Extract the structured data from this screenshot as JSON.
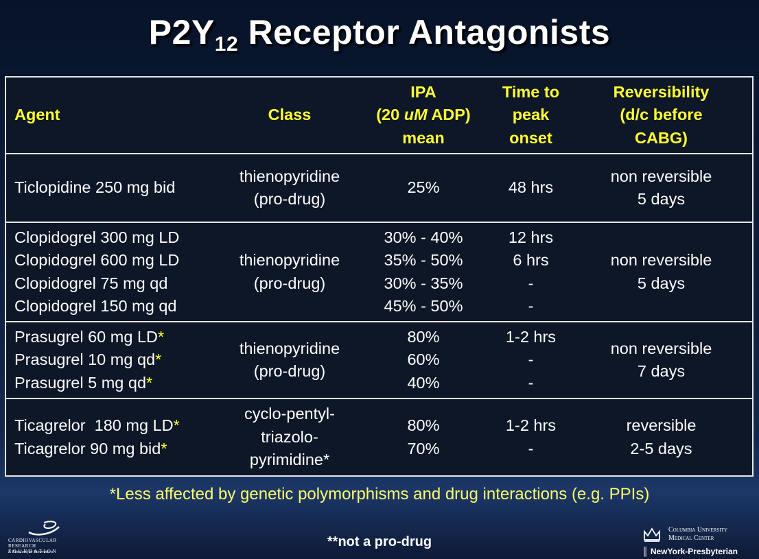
{
  "title": {
    "main": "P2Y",
    "sub": "12",
    "rest": " Receptor Antagonists"
  },
  "table": {
    "headers": {
      "agent": [
        "Agent"
      ],
      "class": [
        "Class"
      ],
      "ipa": [
        "IPA",
        "(20 ",
        "uM",
        " ADP)",
        "mean"
      ],
      "time": [
        "Time to",
        "peak",
        "onset"
      ],
      "rev": [
        "Reversibility",
        "(d/c before",
        "CABG)"
      ]
    },
    "rows": [
      {
        "agent": [
          "Ticlopidine 250 mg bid"
        ],
        "class": [
          "thienopyridine",
          "(pro-drug)"
        ],
        "ipa": [
          "25%"
        ],
        "time": [
          "48 hrs"
        ],
        "rev": [
          "non reversible",
          "5 days"
        ]
      },
      {
        "agent": [
          "Clopidogrel 300 mg LD",
          "Clopidogrel 600 mg LD",
          "Clopidogrel 75 mg qd",
          "Clopidogrel 150 mg qd"
        ],
        "class": [
          "thienopyridine",
          "(pro-drug)"
        ],
        "ipa": [
          "30% - 40%",
          "35% - 50%",
          "30% - 35%",
          "45% - 50%"
        ],
        "time": [
          "12 hrs",
          "6 hrs",
          "-",
          "-"
        ],
        "rev": [
          "non reversible",
          "5 days"
        ]
      },
      {
        "agent": [
          "Prasugrel 60 mg LD",
          "Prasugrel 10 mg qd",
          "Prasugrel 5 mg qd"
        ],
        "class": [
          "thienopyridine",
          "(pro-drug)"
        ],
        "ipa": [
          "80%",
          "60%",
          "40%"
        ],
        "time": [
          "1-2 hrs",
          "-",
          "-"
        ],
        "rev": [
          "non reversible",
          "7 days"
        ]
      },
      {
        "agent": [
          "Ticagrelor  180 mg LD",
          "Ticagrelor 90 mg bid"
        ],
        "class": [
          "cyclo-pentyl-",
          "triazolo-",
          "pyrimidine*"
        ],
        "ipa": [
          "80%",
          "70%"
        ],
        "time": [
          "1-2 hrs",
          "-"
        ],
        "rev": [
          "reversible",
          "2-5 days"
        ]
      }
    ],
    "star": "*"
  },
  "footnote": "*Less affected by genetic polymorphisms and drug interactions (e.g. PPIs)",
  "note2": "**not a pro-drug",
  "logos": {
    "crf_name_1": "CARDIOVASCULAR RESEARCH",
    "crf_name_2": "F O U N D A T I O N",
    "crf_tagline": "A Passion for Innovation",
    "cu_line1": "Columbia University",
    "cu_line2": "Medical Center",
    "nyp": "NewYork-Presbyterian"
  },
  "colors": {
    "header_text": "#ffff33",
    "footnote_text": "#ffff66",
    "background": "#0c1d3c"
  }
}
